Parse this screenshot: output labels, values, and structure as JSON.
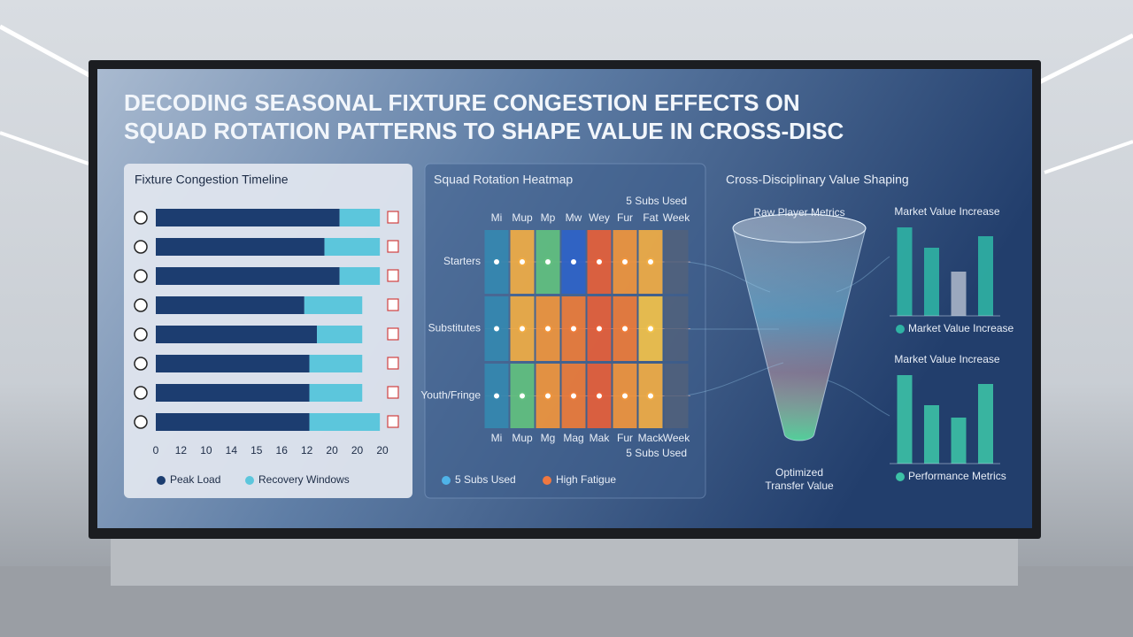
{
  "title_lines": [
    "DECODING SEASONAL FIXTURE CONGESTION EFFECTS ON",
    "SQUAD ROTATION PATTERNS TO SHAPE VALUE IN CROSS-DISC"
  ],
  "value_panel": {
    "title": "Cross-Disciplinary Value Shaping",
    "funnel_top": "Raw Player Metrics",
    "funnel_bottom": [
      "Optimized",
      "Transfer Value"
    ]
  },
  "chart_data": [
    {
      "type": "stacked-barh",
      "title": "Fixture Congestion Timeline",
      "categories": [
        null,
        null,
        null,
        null,
        null,
        null,
        null,
        null
      ],
      "series": [
        {
          "name": "Peak Load",
          "color": "#1c3d70",
          "values": [
            7.3,
            6.7,
            7.3,
            5.9,
            6.4,
            6.1,
            6.1,
            6.1
          ]
        },
        {
          "name": "Recovery Windows",
          "color": "#5cc6dc",
          "values": [
            1.6,
            2.2,
            1.6,
            2.3,
            1.8,
            2.1,
            2.1,
            2.8
          ]
        }
      ],
      "xlim": [
        0,
        9
      ],
      "xticks": [
        {
          "value": 0,
          "label": "0"
        },
        {
          "value": 1,
          "label": "12"
        },
        {
          "value": 2,
          "label": "10"
        },
        {
          "value": 3,
          "label": "14"
        },
        {
          "value": 4,
          "label": "15"
        },
        {
          "value": 5,
          "label": "16"
        },
        {
          "value": 6,
          "label": "12"
        },
        {
          "value": 7,
          "label": "20"
        },
        {
          "value": 8,
          "label": "20"
        },
        {
          "value": 9,
          "label": "20"
        }
      ]
    },
    {
      "type": "heatmap",
      "title": "Squad Rotation Heatmap",
      "top_note": "5 Subs Used",
      "bottom_note": "5 Subs Used",
      "categories": [
        "Mi",
        "Mup",
        "Mp",
        "Mw",
        "Wey",
        "Fur",
        "Fat",
        "Week"
      ],
      "categories_bottom": [
        "Mi",
        "Mup",
        "Mg",
        "Mag",
        "Mak",
        "Fur",
        "Mack",
        "Week"
      ],
      "rows": [
        "Starters",
        "Substitutes",
        "Youth/Fringe"
      ],
      "values": [
        [
          1,
          6,
          3,
          0,
          9,
          7,
          6,
          null
        ],
        [
          1,
          6,
          7,
          8,
          9,
          8,
          5,
          null
        ],
        [
          1,
          3,
          7,
          8,
          9,
          7,
          6,
          null
        ]
      ],
      "clim": [
        0,
        10
      ],
      "colorscale": [
        "#2f63c8",
        "#3ec08c",
        "#f2c24a",
        "#f08a3a",
        "#e0443a"
      ],
      "legend": [
        {
          "name": "5 Subs Used",
          "color": "#4fb3e8"
        },
        {
          "name": "High Fatigue",
          "color": "#f07840"
        }
      ]
    },
    {
      "type": "bar",
      "title": "Market Value Increase",
      "categories": [
        null,
        null,
        null,
        null
      ],
      "values": [
        100,
        77,
        50,
        90
      ],
      "colors": [
        "#2fb3a4",
        "#2fb3a4",
        "#a9b4c6",
        "#2fb3a4"
      ],
      "ylim": [
        0,
        100
      ],
      "legend": "Market Value Increase",
      "legend_color": "#2fb3a4"
    },
    {
      "type": "bar",
      "title": "Market Value Increase",
      "categories": [
        null,
        null,
        null,
        null
      ],
      "values": [
        100,
        66,
        52,
        90
      ],
      "colors": [
        "#3cc1a6",
        "#3cc1a6",
        "#3cc1a6",
        "#3cc1a6"
      ],
      "ylim": [
        0,
        100
      ],
      "legend": "Performance Metrics",
      "legend_color": "#3cc1a6"
    }
  ]
}
